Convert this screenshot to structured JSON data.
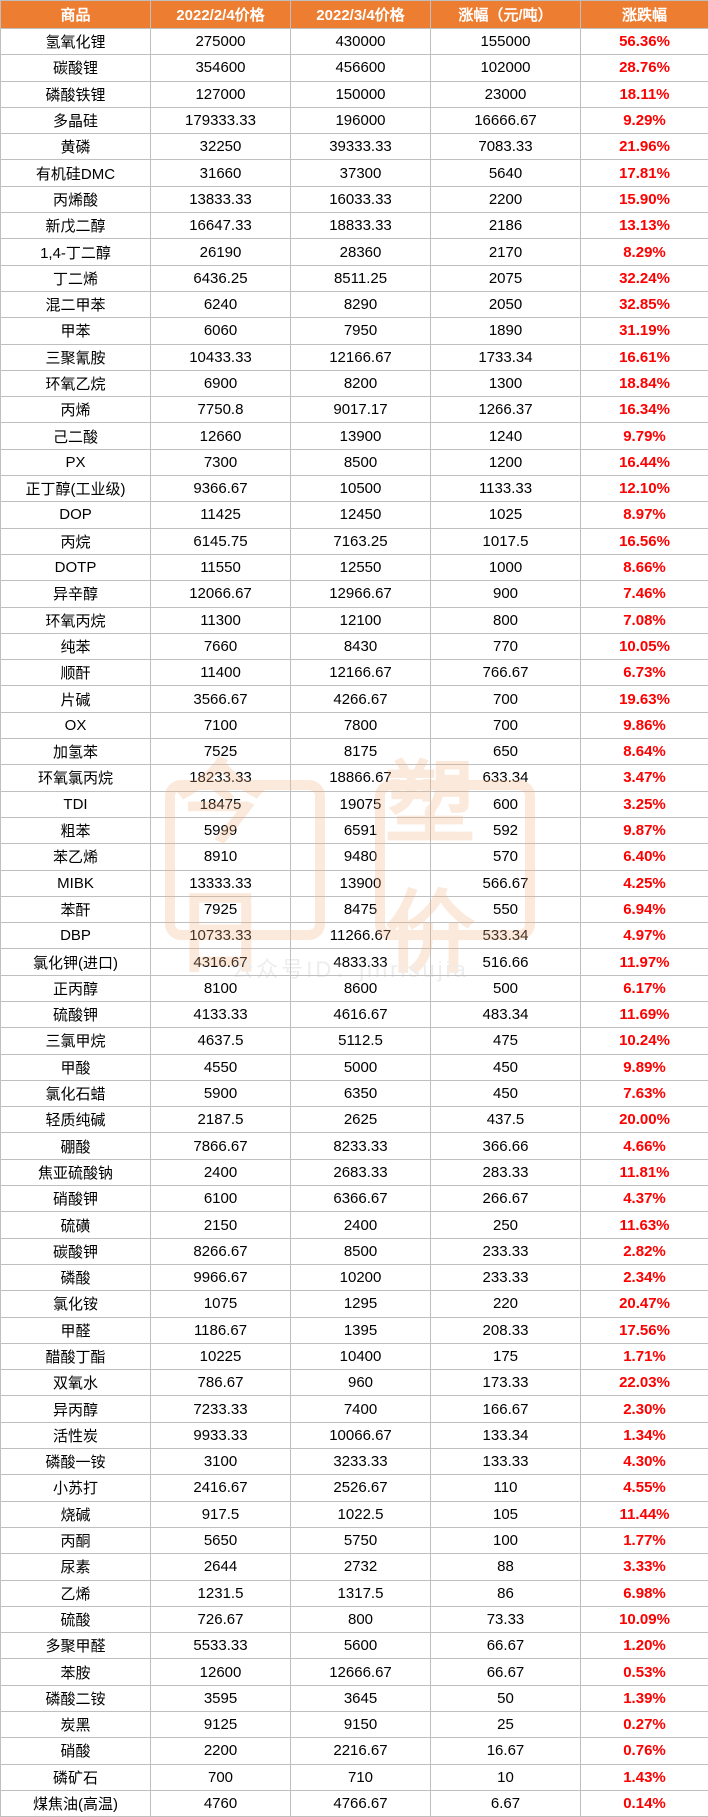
{
  "table": {
    "header_bg": "#ed7d31",
    "header_color": "#ffffff",
    "border_color": "#bfbfbf",
    "pct_color": "#ff0000",
    "text_color": "#000000",
    "col_widths": [
      "150px",
      "140px",
      "140px",
      "150px",
      "128px"
    ],
    "columns": [
      "商品",
      "2022/2/4价格",
      "2022/3/4价格",
      "涨幅（元/吨）",
      "涨跌幅"
    ],
    "rows": [
      [
        "氢氧化锂",
        "275000",
        "430000",
        "155000",
        "56.36%"
      ],
      [
        "碳酸锂",
        "354600",
        "456600",
        "102000",
        "28.76%"
      ],
      [
        "磷酸铁锂",
        "127000",
        "150000",
        "23000",
        "18.11%"
      ],
      [
        "多晶硅",
        "179333.33",
        "196000",
        "16666.67",
        "9.29%"
      ],
      [
        "黄磷",
        "32250",
        "39333.33",
        "7083.33",
        "21.96%"
      ],
      [
        "有机硅DMC",
        "31660",
        "37300",
        "5640",
        "17.81%"
      ],
      [
        "丙烯酸",
        "13833.33",
        "16033.33",
        "2200",
        "15.90%"
      ],
      [
        "新戊二醇",
        "16647.33",
        "18833.33",
        "2186",
        "13.13%"
      ],
      [
        "1,4-丁二醇",
        "26190",
        "28360",
        "2170",
        "8.29%"
      ],
      [
        "丁二烯",
        "6436.25",
        "8511.25",
        "2075",
        "32.24%"
      ],
      [
        "混二甲苯",
        "6240",
        "8290",
        "2050",
        "32.85%"
      ],
      [
        "甲苯",
        "6060",
        "7950",
        "1890",
        "31.19%"
      ],
      [
        "三聚氰胺",
        "10433.33",
        "12166.67",
        "1733.34",
        "16.61%"
      ],
      [
        "环氧乙烷",
        "6900",
        "8200",
        "1300",
        "18.84%"
      ],
      [
        "丙烯",
        "7750.8",
        "9017.17",
        "1266.37",
        "16.34%"
      ],
      [
        "己二酸",
        "12660",
        "13900",
        "1240",
        "9.79%"
      ],
      [
        "PX",
        "7300",
        "8500",
        "1200",
        "16.44%"
      ],
      [
        "正丁醇(工业级)",
        "9366.67",
        "10500",
        "1133.33",
        "12.10%"
      ],
      [
        "DOP",
        "11425",
        "12450",
        "1025",
        "8.97%"
      ],
      [
        "丙烷",
        "6145.75",
        "7163.25",
        "1017.5",
        "16.56%"
      ],
      [
        "DOTP",
        "11550",
        "12550",
        "1000",
        "8.66%"
      ],
      [
        "异辛醇",
        "12066.67",
        "12966.67",
        "900",
        "7.46%"
      ],
      [
        "环氧丙烷",
        "11300",
        "12100",
        "800",
        "7.08%"
      ],
      [
        "纯苯",
        "7660",
        "8430",
        "770",
        "10.05%"
      ],
      [
        "顺酐",
        "11400",
        "12166.67",
        "766.67",
        "6.73%"
      ],
      [
        "片碱",
        "3566.67",
        "4266.67",
        "700",
        "19.63%"
      ],
      [
        "OX",
        "7100",
        "7800",
        "700",
        "9.86%"
      ],
      [
        "加氢苯",
        "7525",
        "8175",
        "650",
        "8.64%"
      ],
      [
        "环氧氯丙烷",
        "18233.33",
        "18866.67",
        "633.34",
        "3.47%"
      ],
      [
        "TDI",
        "18475",
        "19075",
        "600",
        "3.25%"
      ],
      [
        "粗苯",
        "5999",
        "6591",
        "592",
        "9.87%"
      ],
      [
        "苯乙烯",
        "8910",
        "9480",
        "570",
        "6.40%"
      ],
      [
        "MIBK",
        "13333.33",
        "13900",
        "566.67",
        "4.25%"
      ],
      [
        "苯酐",
        "7925",
        "8475",
        "550",
        "6.94%"
      ],
      [
        "DBP",
        "10733.33",
        "11266.67",
        "533.34",
        "4.97%"
      ],
      [
        "氯化钾(进口)",
        "4316.67",
        "4833.33",
        "516.66",
        "11.97%"
      ],
      [
        "正丙醇",
        "8100",
        "8600",
        "500",
        "6.17%"
      ],
      [
        "硫酸钾",
        "4133.33",
        "4616.67",
        "483.34",
        "11.69%"
      ],
      [
        "三氯甲烷",
        "4637.5",
        "5112.5",
        "475",
        "10.24%"
      ],
      [
        "甲酸",
        "4550",
        "5000",
        "450",
        "9.89%"
      ],
      [
        "氯化石蜡",
        "5900",
        "6350",
        "450",
        "7.63%"
      ],
      [
        "轻质纯碱",
        "2187.5",
        "2625",
        "437.5",
        "20.00%"
      ],
      [
        "硼酸",
        "7866.67",
        "8233.33",
        "366.66",
        "4.66%"
      ],
      [
        "焦亚硫酸钠",
        "2400",
        "2683.33",
        "283.33",
        "11.81%"
      ],
      [
        "硝酸钾",
        "6100",
        "6366.67",
        "266.67",
        "4.37%"
      ],
      [
        "硫磺",
        "2150",
        "2400",
        "250",
        "11.63%"
      ],
      [
        "碳酸钾",
        "8266.67",
        "8500",
        "233.33",
        "2.82%"
      ],
      [
        "磷酸",
        "9966.67",
        "10200",
        "233.33",
        "2.34%"
      ],
      [
        "氯化铵",
        "1075",
        "1295",
        "220",
        "20.47%"
      ],
      [
        "甲醛",
        "1186.67",
        "1395",
        "208.33",
        "17.56%"
      ],
      [
        "醋酸丁酯",
        "10225",
        "10400",
        "175",
        "1.71%"
      ],
      [
        "双氧水",
        "786.67",
        "960",
        "173.33",
        "22.03%"
      ],
      [
        "异丙醇",
        "7233.33",
        "7400",
        "166.67",
        "2.30%"
      ],
      [
        "活性炭",
        "9933.33",
        "10066.67",
        "133.34",
        "1.34%"
      ],
      [
        "磷酸一铵",
        "3100",
        "3233.33",
        "133.33",
        "4.30%"
      ],
      [
        "小苏打",
        "2416.67",
        "2526.67",
        "110",
        "4.55%"
      ],
      [
        "烧碱",
        "917.5",
        "1022.5",
        "105",
        "11.44%"
      ],
      [
        "丙酮",
        "5650",
        "5750",
        "100",
        "1.77%"
      ],
      [
        "尿素",
        "2644",
        "2732",
        "88",
        "3.33%"
      ],
      [
        "乙烯",
        "1231.5",
        "1317.5",
        "86",
        "6.98%"
      ],
      [
        "硫酸",
        "726.67",
        "800",
        "73.33",
        "10.09%"
      ],
      [
        "多聚甲醛",
        "5533.33",
        "5600",
        "66.67",
        "1.20%"
      ],
      [
        "苯胺",
        "12600",
        "12666.67",
        "66.67",
        "0.53%"
      ],
      [
        "磷酸二铵",
        "3595",
        "3645",
        "50",
        "1.39%"
      ],
      [
        "炭黑",
        "9125",
        "9150",
        "25",
        "0.27%"
      ],
      [
        "硝酸",
        "2200",
        "2216.67",
        "16.67",
        "0.76%"
      ],
      [
        "磷矿石",
        "700",
        "710",
        "10",
        "1.43%"
      ],
      [
        "煤焦油(高温)",
        "4760",
        "4766.67",
        "6.67",
        "0.14%"
      ]
    ]
  },
  "watermark": {
    "logo_text_1": "今日",
    "logo_text_2": "塑价",
    "sub_text": "公众号ID：jinrisujia",
    "logo_color": "#f4b183",
    "sub_color": "#bfbfbf"
  }
}
